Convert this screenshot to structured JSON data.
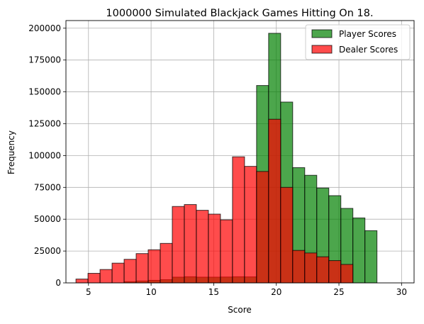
{
  "chart_data": {
    "type": "histogram",
    "title": "1000000 Simulated Blackjack Games Hitting On 18.",
    "xlabel": "Score",
    "ylabel": "Frequency",
    "xlim": [
      3.2,
      31.0
    ],
    "ylim": [
      0,
      206000
    ],
    "xticks": [
      5,
      10,
      15,
      20,
      25,
      30
    ],
    "yticks": [
      0,
      25000,
      50000,
      75000,
      100000,
      125000,
      150000,
      175000,
      200000
    ],
    "grid": true,
    "legend_position": "top-right",
    "bin_width": 0.9615,
    "bins_start": 4,
    "series": [
      {
        "name": "Player Scores",
        "color": "#008000",
        "alpha": 0.7,
        "values": [
          0,
          0,
          0,
          0,
          1000,
          1500,
          2000,
          2500,
          4500,
          4800,
          4500,
          4500,
          4600,
          4800,
          4700,
          155000,
          196000,
          142000,
          90500,
          84500,
          74500,
          68500,
          58500,
          51000,
          41000,
          0
        ]
      },
      {
        "name": "Dealer Scores",
        "color": "#ff0000",
        "alpha": 0.7,
        "values": [
          3000,
          7500,
          10500,
          15500,
          18500,
          23000,
          26000,
          31000,
          60000,
          61500,
          57000,
          54000,
          49500,
          99000,
          91500,
          87500,
          128500,
          75000,
          25500,
          23500,
          20500,
          17500,
          14500,
          0,
          0,
          0
        ]
      }
    ]
  }
}
